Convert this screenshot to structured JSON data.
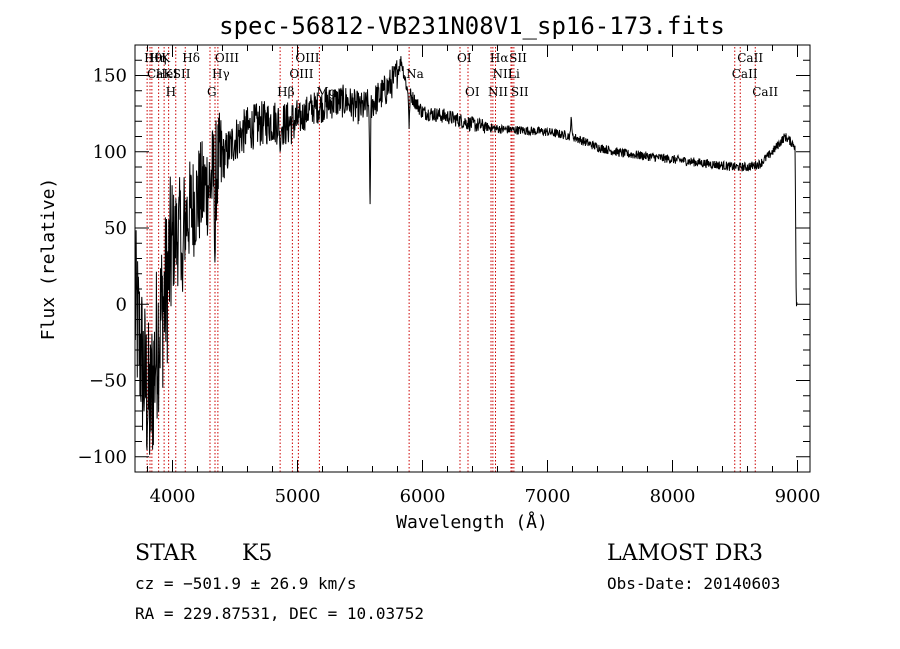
{
  "chart_data": {
    "type": "line",
    "title": "spec-56812-VB231N08V1_sp16-173.fits",
    "xlabel": "Wavelength (Å)",
    "ylabel": "Flux (relative)",
    "xlim": [
      3700,
      9100
    ],
    "ylim": [
      -110,
      170
    ],
    "x_ticks": [
      4000,
      5000,
      6000,
      7000,
      8000,
      9000
    ],
    "y_ticks": [
      -100,
      -50,
      0,
      50,
      100,
      150
    ],
    "grid": false,
    "colors": {
      "spectrum": "#000000",
      "lines": "#cc0000",
      "axes": "#000000"
    },
    "lines": [
      {
        "wl": 3797,
        "label": "Hθ",
        "row": 1
      },
      {
        "wl": 3820,
        "label": "CaK",
        "row": 2
      },
      {
        "wl": 3835,
        "label": "Hη",
        "row": 1
      },
      {
        "wl": 3889,
        "label": "HeI",
        "row": 2
      },
      {
        "wl": 3933,
        "label": "K",
        "row": 1
      },
      {
        "wl": 3969,
        "label": "H",
        "row": 3
      },
      {
        "wl": 4026,
        "label": "SII",
        "row": 2
      },
      {
        "wl": 4102,
        "label": "Hδ",
        "row": 1
      },
      {
        "wl": 4300,
        "label": "G",
        "row": 3
      },
      {
        "wl": 4340,
        "label": "Hγ",
        "row": 2
      },
      {
        "wl": 4363,
        "label": "OIII",
        "row": 1
      },
      {
        "wl": 4861,
        "label": "Hβ",
        "row": 3
      },
      {
        "wl": 4959,
        "label": "OIII",
        "row": 2
      },
      {
        "wl": 5007,
        "label": "OIII",
        "row": 1
      },
      {
        "wl": 5175,
        "label": "Mg",
        "row": 3
      },
      {
        "wl": 5893,
        "label": "Na",
        "row": 2
      },
      {
        "wl": 6300,
        "label": "OI",
        "row": 1
      },
      {
        "wl": 6364,
        "label": "OI",
        "row": 3
      },
      {
        "wl": 6548,
        "label": "NII",
        "row": 3
      },
      {
        "wl": 6563,
        "label": "Hα",
        "row": 1
      },
      {
        "wl": 6584,
        "label": "NII",
        "row": 2
      },
      {
        "wl": 6708,
        "label": "Li",
        "row": 2
      },
      {
        "wl": 6717,
        "label": "SII",
        "row": 1
      },
      {
        "wl": 6731,
        "label": "SII",
        "row": 3
      },
      {
        "wl": 8498,
        "label": "CaII",
        "row": 2
      },
      {
        "wl": 8542,
        "label": "CaII",
        "row": 1
      },
      {
        "wl": 8662,
        "label": "CaII",
        "row": 3
      }
    ],
    "spectrum_anchors": [
      [
        3700,
        0
      ],
      [
        3760,
        -40
      ],
      [
        3820,
        -70
      ],
      [
        3880,
        -20
      ],
      [
        3950,
        10
      ],
      [
        4000,
        40
      ],
      [
        4100,
        55
      ],
      [
        4200,
        70
      ],
      [
        4300,
        80
      ],
      [
        4400,
        95
      ],
      [
        4500,
        108
      ],
      [
        4600,
        115
      ],
      [
        4700,
        118
      ],
      [
        4800,
        120
      ],
      [
        4900,
        118
      ],
      [
        5000,
        120
      ],
      [
        5100,
        128
      ],
      [
        5200,
        130
      ],
      [
        5300,
        133
      ],
      [
        5400,
        133
      ],
      [
        5500,
        128
      ],
      [
        5600,
        132
      ],
      [
        5700,
        140
      ],
      [
        5780,
        148
      ],
      [
        5830,
        160
      ],
      [
        5880,
        140
      ],
      [
        6000,
        126
      ],
      [
        6200,
        123
      ],
      [
        6400,
        118
      ],
      [
        6600,
        115
      ],
      [
        6800,
        114
      ],
      [
        7000,
        113
      ],
      [
        7200,
        110
      ],
      [
        7400,
        103
      ],
      [
        7600,
        99
      ],
      [
        7800,
        97
      ],
      [
        8000,
        95
      ],
      [
        8200,
        93
      ],
      [
        8400,
        91
      ],
      [
        8500,
        90
      ],
      [
        8600,
        90
      ],
      [
        8700,
        92
      ],
      [
        8800,
        100
      ],
      [
        8900,
        110
      ],
      [
        8980,
        104
      ],
      [
        8990,
        0
      ]
    ],
    "features": [
      {
        "wl": 4080,
        "value": 0
      },
      {
        "wl": 4340,
        "value": 20
      },
      {
        "wl": 4861,
        "value": 100
      },
      {
        "wl": 5580,
        "value": 55
      },
      {
        "wl": 5893,
        "value": 115
      },
      {
        "wl": 7190,
        "value": 125
      }
    ]
  },
  "footer": {
    "class_label": "STAR",
    "subclass": "K5",
    "survey": "LAMOST DR3",
    "cz": "cz = −501.9 ± 26.9 km/s",
    "obs_date": "Obs-Date: 20140603",
    "coords": "RA = 229.87531, DEC =  10.03752"
  }
}
